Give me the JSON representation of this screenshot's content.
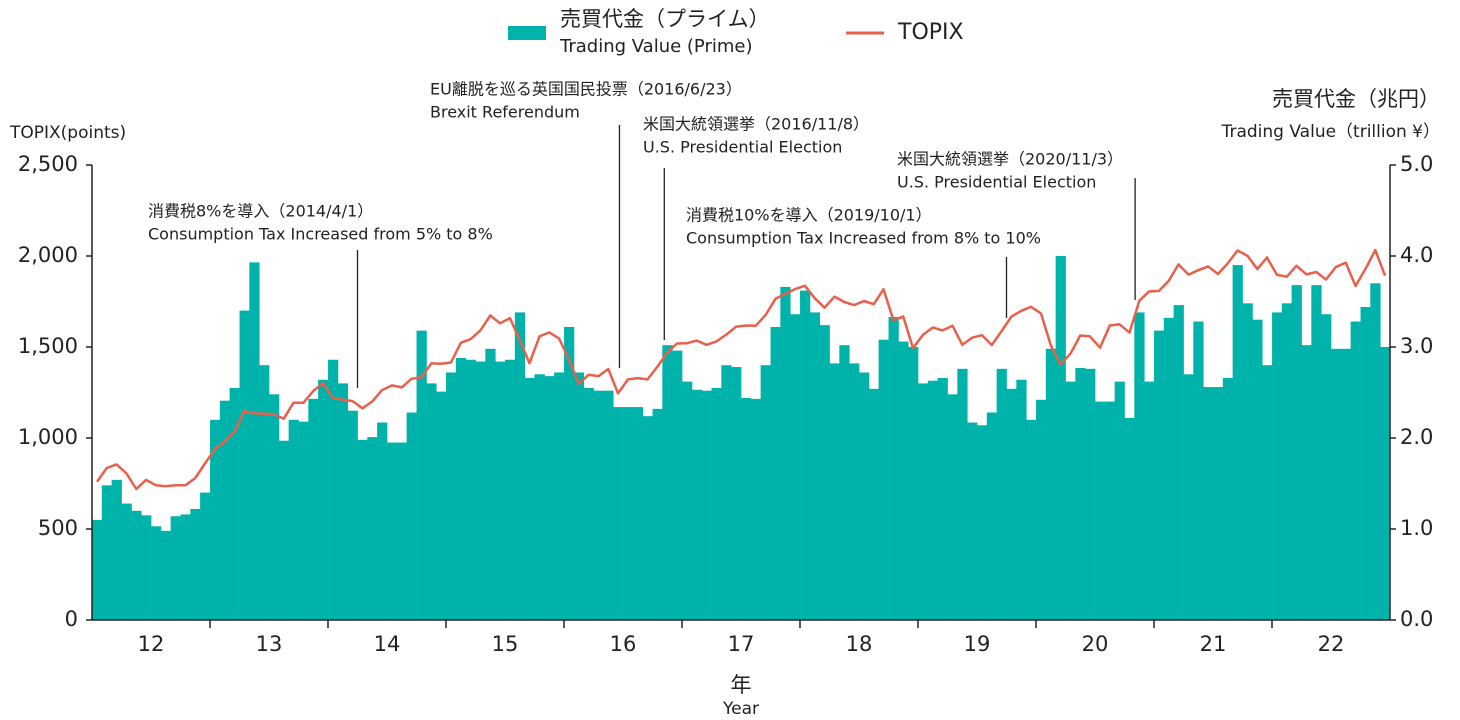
{
  "chart_data": {
    "type": "bar_line",
    "x_label": "年",
    "x_label_en": "Year",
    "y_label": "TOPIX(points)",
    "y2_label": "売買代金（兆円）",
    "y2_label_en": "Trading Value（trillion ¥）",
    "xlim": [
      2012,
      2023
    ],
    "xticks": [
      {
        "value": 2012.5,
        "label": "12"
      },
      {
        "value": 2013.5,
        "label": "13"
      },
      {
        "value": 2014.5,
        "label": "14"
      },
      {
        "value": 2015.5,
        "label": "15"
      },
      {
        "value": 2016.5,
        "label": "16"
      },
      {
        "value": 2017.5,
        "label": "17"
      },
      {
        "value": 2018.5,
        "label": "18"
      },
      {
        "value": 2019.5,
        "label": "19"
      },
      {
        "value": 2020.5,
        "label": "20"
      },
      {
        "value": 2021.5,
        "label": "21"
      },
      {
        "value": 2022.5,
        "label": "22"
      }
    ],
    "ylim": [
      0,
      2500
    ],
    "yticks": [
      0,
      500,
      {
        "value": 1000,
        "label": "1,000"
      },
      {
        "value": 1500,
        "label": "1,500"
      },
      {
        "value": 2000,
        "label": "2,000"
      },
      {
        "value": 2500,
        "label": "2,500"
      }
    ],
    "y2lim": [
      0,
      5
    ],
    "y2ticks": [
      {
        "value": 0,
        "label": "0.0"
      },
      {
        "value": 1,
        "label": "1.0"
      },
      {
        "value": 2,
        "label": "2.0"
      },
      {
        "value": 3,
        "label": "3.0"
      },
      {
        "value": 4,
        "label": "4.0"
      },
      {
        "value": 5,
        "label": "5.0"
      }
    ],
    "x": [
      2012.042,
      2012.125,
      2012.208,
      2012.292,
      2012.375,
      2012.458,
      2012.542,
      2012.625,
      2012.708,
      2012.792,
      2012.875,
      2012.958,
      2013.042,
      2013.125,
      2013.208,
      2013.292,
      2013.375,
      2013.458,
      2013.542,
      2013.625,
      2013.708,
      2013.792,
      2013.875,
      2013.958,
      2014.042,
      2014.125,
      2014.208,
      2014.292,
      2014.375,
      2014.458,
      2014.542,
      2014.625,
      2014.708,
      2014.792,
      2014.875,
      2014.958,
      2015.042,
      2015.125,
      2015.208,
      2015.292,
      2015.375,
      2015.458,
      2015.542,
      2015.625,
      2015.708,
      2015.792,
      2015.875,
      2015.958,
      2016.042,
      2016.125,
      2016.208,
      2016.292,
      2016.375,
      2016.458,
      2016.542,
      2016.625,
      2016.708,
      2016.792,
      2016.875,
      2016.958,
      2017.042,
      2017.125,
      2017.208,
      2017.292,
      2017.375,
      2017.458,
      2017.542,
      2017.625,
      2017.708,
      2017.792,
      2017.875,
      2017.958,
      2018.042,
      2018.125,
      2018.208,
      2018.292,
      2018.375,
      2018.458,
      2018.542,
      2018.625,
      2018.708,
      2018.792,
      2018.875,
      2018.958,
      2019.042,
      2019.125,
      2019.208,
      2019.292,
      2019.375,
      2019.458,
      2019.542,
      2019.625,
      2019.708,
      2019.792,
      2019.875,
      2019.958,
      2020.042,
      2020.125,
      2020.208,
      2020.292,
      2020.375,
      2020.458,
      2020.542,
      2020.625,
      2020.708,
      2020.792,
      2020.875,
      2020.958,
      2021.042,
      2021.125,
      2021.208,
      2021.292,
      2021.375,
      2021.458,
      2021.542,
      2021.625,
      2021.708,
      2021.792,
      2021.875,
      2021.958,
      2022.042,
      2022.125,
      2022.208,
      2022.292,
      2022.375,
      2022.458,
      2022.542,
      2022.625,
      2022.708,
      2022.792,
      2022.875,
      2022.958
    ],
    "series": [
      {
        "name": "売買代金（プライム）",
        "name_en": "Trading Value (Prime)",
        "type": "bar",
        "axis": "y2",
        "color": "#00b3aa",
        "values": [
          1.1,
          1.48,
          1.54,
          1.28,
          1.2,
          1.15,
          1.03,
          0.98,
          1.14,
          1.16,
          1.22,
          1.4,
          2.2,
          2.41,
          2.55,
          3.4,
          3.93,
          2.8,
          2.48,
          1.97,
          2.2,
          2.18,
          2.43,
          2.64,
          2.86,
          2.6,
          2.3,
          1.98,
          2.01,
          2.17,
          1.95,
          1.95,
          2.28,
          3.18,
          2.6,
          2.51,
          2.72,
          2.88,
          2.86,
          2.84,
          2.98,
          2.84,
          2.86,
          3.38,
          2.66,
          2.7,
          2.68,
          2.72,
          3.22,
          2.72,
          2.55,
          2.52,
          2.52,
          2.34,
          2.34,
          2.34,
          2.24,
          2.32,
          3.02,
          2.96,
          2.62,
          2.53,
          2.52,
          2.55,
          2.8,
          2.78,
          2.44,
          2.43,
          2.8,
          3.22,
          3.66,
          3.36,
          3.62,
          3.38,
          3.24,
          2.82,
          3.02,
          2.82,
          2.72,
          2.54,
          3.08,
          3.33,
          3.06,
          3.0,
          2.6,
          2.63,
          2.66,
          2.48,
          2.76,
          2.17,
          2.14,
          2.28,
          2.76,
          2.54,
          2.64,
          2.2,
          2.42,
          2.98,
          4.0,
          2.62,
          2.77,
          2.76,
          2.4,
          2.4,
          2.62,
          2.22,
          3.38,
          2.62,
          3.18,
          3.32,
          3.46,
          2.7,
          3.28,
          2.56,
          2.56,
          2.66,
          3.9,
          3.48,
          3.3,
          2.8,
          3.38,
          3.48,
          3.68,
          3.02,
          3.68,
          3.36,
          2.98,
          2.98,
          3.28,
          3.44,
          3.7,
          3.0
        ]
      },
      {
        "name": "TOPIX",
        "type": "line",
        "color": "#e8604c",
        "values": [
          760,
          835,
          855,
          805,
          720,
          770,
          740,
          735,
          740,
          740,
          780,
          860,
          940,
          980,
          1034,
          1148,
          1135,
          1134,
          1131,
          1106,
          1194,
          1194,
          1258,
          1302,
          1220,
          1211,
          1203,
          1163,
          1201,
          1263,
          1289,
          1278,
          1326,
          1333,
          1410,
          1408,
          1415,
          1523,
          1543,
          1592,
          1673,
          1630,
          1659,
          1537,
          1411,
          1558,
          1580,
          1547,
          1432,
          1297,
          1347,
          1340,
          1379,
          1245,
          1322,
          1329,
          1322,
          1393,
          1469,
          1519,
          1521,
          1535,
          1512,
          1531,
          1568,
          1611,
          1618,
          1617,
          1675,
          1765,
          1792,
          1818,
          1836,
          1768,
          1716,
          1777,
          1747,
          1730,
          1753,
          1735,
          1817,
          1646,
          1667,
          1494,
          1567,
          1607,
          1591,
          1617,
          1512,
          1551,
          1565,
          1511,
          1587,
          1667,
          1699,
          1721,
          1684,
          1510,
          1403,
          1464,
          1563,
          1558,
          1496,
          1618,
          1625,
          1579,
          1754,
          1805,
          1808,
          1864,
          1954,
          1898,
          1922,
          1943,
          1901,
          1960,
          2030,
          2001,
          1928,
          1992,
          1896,
          1886,
          1946,
          1899,
          1912,
          1871,
          1940,
          1963,
          1835,
          1929,
          2033,
          1892
        ]
      }
    ],
    "annotations": [
      {
        "text": "消費税8%を導入（2014/4/1）",
        "text_en": "Consumption Tax  Increased from 5% to 8%",
        "x": 2014.25
      },
      {
        "text": "EU離脱を巡る英国国民投票（2016/6/23）",
        "text_en": "Brexit Referendum",
        "x": 2016.47
      },
      {
        "text": "米国大統領選挙（2016/11/8）",
        "text_en": "U.S. Presidential Election",
        "x": 2016.85
      },
      {
        "text": "消費税10%を導入（2019/10/1）",
        "text_en": "Consumption Tax  Increased from 8% to 10%",
        "x": 2019.75
      },
      {
        "text": "米国大統領選挙（2020/11/3）",
        "text_en": "U.S. Presidential Election",
        "x": 2020.84
      }
    ]
  }
}
